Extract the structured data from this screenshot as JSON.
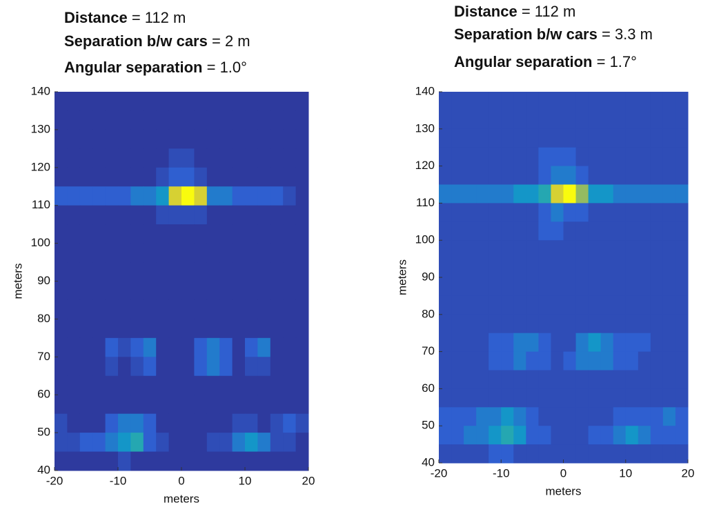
{
  "chart_data": [
    {
      "type": "heatmap",
      "title_lines": [
        {
          "label": "Distance",
          "text": "= 112 m"
        },
        {
          "label": "Separation b/w cars",
          "text": "= 2  m"
        },
        {
          "label": "Angular separation",
          "text": "= 1.0°"
        }
      ],
      "xlabel": "meters",
      "ylabel": "meters",
      "colormap": "parula",
      "clim": [
        0,
        10
      ],
      "xlim": [
        -20,
        20
      ],
      "ylim": [
        40,
        140
      ],
      "xticks": [
        -20,
        -10,
        0,
        10,
        20
      ],
      "yticks": [
        40,
        50,
        60,
        70,
        80,
        90,
        100,
        110,
        120,
        130,
        140
      ],
      "z": [
        [
          1,
          1,
          1,
          1,
          1,
          1,
          1,
          1,
          1,
          1,
          1,
          1,
          1,
          1,
          1,
          1,
          1,
          1,
          1,
          1
        ],
        [
          1,
          1,
          1,
          1,
          1,
          1,
          1,
          1,
          1,
          1,
          1,
          1,
          1,
          1,
          1,
          1,
          1,
          1,
          1,
          1
        ],
        [
          1,
          1,
          1,
          1,
          1,
          1,
          1,
          1,
          1,
          1,
          1,
          1,
          1,
          1,
          1,
          1,
          1,
          1,
          1,
          1
        ],
        [
          1,
          1,
          1,
          1,
          1,
          1,
          1,
          1,
          1,
          2,
          2,
          1,
          1,
          1,
          1,
          1,
          1,
          1,
          1,
          1
        ],
        [
          1,
          1,
          1,
          1,
          1,
          1,
          1,
          1,
          2,
          3,
          3,
          2,
          1,
          1,
          1,
          1,
          1,
          1,
          1,
          1
        ],
        [
          3,
          3,
          3,
          3,
          3,
          3,
          4,
          4,
          5,
          9,
          10,
          9,
          4,
          4,
          3,
          3,
          3,
          3,
          2,
          1
        ],
        [
          1,
          1,
          1,
          1,
          1,
          1,
          1,
          1,
          2,
          2,
          2,
          2,
          1,
          1,
          1,
          1,
          1,
          1,
          1,
          1
        ],
        [
          1,
          1,
          1,
          1,
          1,
          1,
          1,
          1,
          1,
          1,
          1,
          1,
          1,
          1,
          1,
          1,
          1,
          1,
          1,
          1
        ],
        [
          1,
          1,
          1,
          1,
          1,
          1,
          1,
          1,
          1,
          1,
          1,
          1,
          1,
          1,
          1,
          1,
          1,
          1,
          1,
          1
        ],
        [
          1,
          1,
          1,
          1,
          1,
          1,
          1,
          1,
          1,
          1,
          1,
          1,
          1,
          1,
          1,
          1,
          1,
          1,
          1,
          1
        ],
        [
          1,
          1,
          1,
          1,
          1,
          1,
          1,
          1,
          1,
          1,
          1,
          1,
          1,
          1,
          1,
          1,
          1,
          1,
          1,
          1
        ],
        [
          1,
          1,
          1,
          1,
          1,
          1,
          1,
          1,
          1,
          1,
          1,
          1,
          1,
          1,
          1,
          1,
          1,
          1,
          1,
          1
        ],
        [
          1,
          1,
          1,
          1,
          1,
          1,
          1,
          1,
          1,
          1,
          1,
          1,
          1,
          1,
          1,
          1,
          1,
          1,
          1,
          1
        ],
        [
          1,
          1,
          1,
          1,
          3,
          2,
          3,
          4,
          1,
          1,
          1,
          3,
          4,
          3,
          1,
          3,
          4,
          1,
          1,
          1
        ],
        [
          1,
          1,
          1,
          1,
          2,
          1,
          2,
          3,
          1,
          1,
          1,
          3,
          4,
          3,
          1,
          2,
          2,
          1,
          1,
          1
        ],
        [
          1,
          1,
          1,
          1,
          1,
          1,
          1,
          1,
          1,
          1,
          1,
          1,
          1,
          1,
          1,
          1,
          1,
          1,
          1,
          1
        ],
        [
          1,
          1,
          1,
          1,
          1,
          1,
          1,
          1,
          1,
          1,
          1,
          1,
          1,
          1,
          1,
          1,
          1,
          1,
          1,
          1
        ],
        [
          2,
          1,
          1,
          1,
          3,
          4,
          4,
          3,
          1,
          1,
          1,
          1,
          1,
          1,
          2,
          2,
          1,
          2,
          3,
          2
        ],
        [
          2,
          2,
          3,
          3,
          4,
          5,
          6,
          3,
          2,
          1,
          1,
          1,
          2,
          2,
          4,
          5,
          4,
          2,
          2,
          1
        ],
        [
          1,
          1,
          1,
          1,
          1,
          2,
          1,
          1,
          1,
          1,
          1,
          1,
          1,
          1,
          1,
          1,
          1,
          1,
          1,
          1
        ]
      ]
    },
    {
      "type": "heatmap",
      "title_lines": [
        {
          "label": "Distance",
          "text": "= 112 m"
        },
        {
          "label": "Separation b/w cars",
          "text": "= 3.3 m"
        },
        {
          "label": "Angular separation",
          "text": "= 1.7°"
        }
      ],
      "xlabel": "meters",
      "ylabel": "meters",
      "colormap": "parula",
      "clim": [
        0,
        10
      ],
      "xlim": [
        -20,
        20
      ],
      "ylim": [
        40,
        140
      ],
      "xticks": [
        -20,
        -10,
        0,
        10,
        20
      ],
      "yticks": [
        40,
        50,
        60,
        70,
        80,
        90,
        100,
        110,
        120,
        130,
        140
      ],
      "z": [
        [
          2,
          2,
          2,
          2,
          2,
          2,
          2,
          2,
          2,
          2,
          2,
          2,
          2,
          2,
          2,
          2,
          2,
          2,
          2,
          2
        ],
        [
          2,
          2,
          2,
          2,
          2,
          2,
          2,
          2,
          2,
          2,
          2,
          2,
          2,
          2,
          2,
          2,
          2,
          2,
          2,
          2
        ],
        [
          2,
          2,
          2,
          2,
          2,
          2,
          2,
          2,
          2,
          2,
          2,
          2,
          2,
          2,
          2,
          2,
          2,
          2,
          2,
          2
        ],
        [
          2,
          2,
          2,
          2,
          2,
          2,
          2,
          2,
          3,
          3,
          3,
          2,
          2,
          2,
          2,
          2,
          2,
          2,
          2,
          2
        ],
        [
          2,
          2,
          2,
          2,
          2,
          2,
          2,
          2,
          3,
          4,
          4,
          3,
          2,
          2,
          2,
          2,
          2,
          2,
          2,
          2
        ],
        [
          4,
          4,
          4,
          4,
          4,
          4,
          5,
          5,
          6,
          9,
          10,
          8,
          5,
          5,
          4,
          4,
          4,
          4,
          4,
          4
        ],
        [
          2,
          2,
          2,
          2,
          2,
          2,
          2,
          2,
          3,
          4,
          3,
          3,
          2,
          2,
          2,
          2,
          2,
          2,
          2,
          2
        ],
        [
          2,
          2,
          2,
          2,
          2,
          2,
          2,
          2,
          3,
          3,
          2,
          2,
          2,
          2,
          2,
          2,
          2,
          2,
          2,
          2
        ],
        [
          2,
          2,
          2,
          2,
          2,
          2,
          2,
          2,
          2,
          2,
          2,
          2,
          2,
          2,
          2,
          2,
          2,
          2,
          2,
          2
        ],
        [
          2,
          2,
          2,
          2,
          2,
          2,
          2,
          2,
          2,
          2,
          2,
          2,
          2,
          2,
          2,
          2,
          2,
          2,
          2,
          2
        ],
        [
          2,
          2,
          2,
          2,
          2,
          2,
          2,
          2,
          2,
          2,
          2,
          2,
          2,
          2,
          2,
          2,
          2,
          2,
          2,
          2
        ],
        [
          2,
          2,
          2,
          2,
          2,
          2,
          2,
          2,
          2,
          2,
          2,
          2,
          2,
          2,
          2,
          2,
          2,
          2,
          2,
          2
        ],
        [
          2,
          2,
          2,
          2,
          2,
          2,
          2,
          2,
          2,
          2,
          2,
          2,
          2,
          2,
          2,
          2,
          2,
          2,
          2,
          2
        ],
        [
          2,
          2,
          2,
          2,
          3,
          3,
          4,
          4,
          3,
          2,
          2,
          4,
          5,
          4,
          3,
          3,
          3,
          2,
          2,
          2
        ],
        [
          2,
          2,
          2,
          2,
          3,
          3,
          4,
          3,
          3,
          2,
          3,
          4,
          4,
          4,
          3,
          3,
          2,
          2,
          2,
          2
        ],
        [
          2,
          2,
          2,
          2,
          2,
          2,
          2,
          2,
          2,
          2,
          2,
          2,
          2,
          2,
          2,
          2,
          2,
          2,
          2,
          2
        ],
        [
          2,
          2,
          2,
          2,
          2,
          2,
          2,
          2,
          2,
          2,
          2,
          2,
          2,
          2,
          2,
          2,
          2,
          2,
          2,
          2
        ],
        [
          3,
          3,
          3,
          4,
          4,
          5,
          4,
          3,
          2,
          2,
          2,
          2,
          2,
          2,
          3,
          3,
          3,
          3,
          4,
          3
        ],
        [
          3,
          3,
          4,
          4,
          5,
          6,
          5,
          3,
          3,
          2,
          2,
          2,
          3,
          3,
          4,
          5,
          4,
          3,
          3,
          3
        ],
        [
          2,
          2,
          2,
          2,
          3,
          3,
          2,
          2,
          2,
          2,
          2,
          2,
          2,
          2,
          2,
          2,
          2,
          2,
          2,
          2
        ]
      ]
    }
  ]
}
